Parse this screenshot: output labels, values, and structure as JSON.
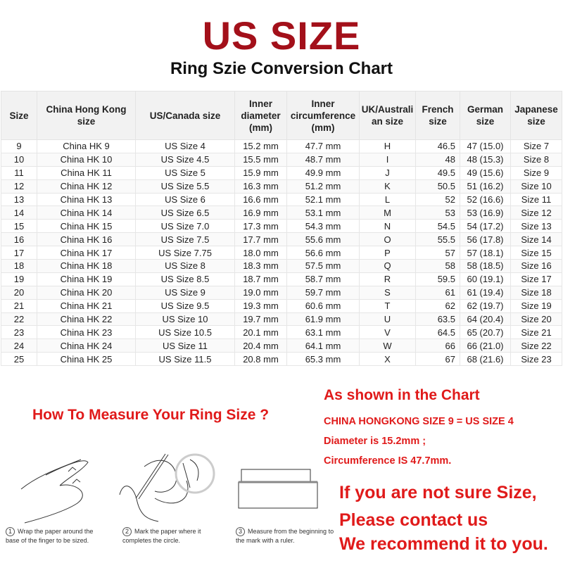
{
  "title": "US SIZE",
  "subtitle": "Ring Szie Conversion Chart",
  "table": {
    "headers": [
      "Size",
      "China Hong Kong size",
      "US/Canada size",
      "Inner diameter (mm)",
      "Inner circumference (mm)",
      "UK/Australi an size",
      "French size",
      "German size",
      "Japanese size"
    ],
    "rows": [
      [
        "9",
        "China HK 9",
        "US Size 4",
        "15.2 mm",
        "47.7 mm",
        "H",
        "46.5",
        "47 (15.0)",
        "Size 7"
      ],
      [
        "10",
        "China HK 10",
        "US Size 4.5",
        "15.5 mm",
        "48.7 mm",
        "I",
        "48",
        "48 (15.3)",
        "Size 8"
      ],
      [
        "11",
        "China HK 11",
        "US Size 5",
        "15.9 mm",
        "49.9 mm",
        "J",
        "49.5",
        "49 (15.6)",
        "Size 9"
      ],
      [
        "12",
        "China HK 12",
        "US Size 5.5",
        "16.3 mm",
        "51.2 mm",
        "K",
        "50.5",
        "51 (16.2)",
        "Size 10"
      ],
      [
        "13",
        "China HK 13",
        "US Size 6",
        "16.6 mm",
        "52.1 mm",
        "L",
        "52",
        "52 (16.6)",
        "Size 11"
      ],
      [
        "14",
        "China HK 14",
        "US Size 6.5",
        "16.9 mm",
        "53.1 mm",
        "M",
        "53",
        "53 (16.9)",
        "Size 12"
      ],
      [
        "15",
        "China HK 15",
        "US Size 7.0",
        "17.3 mm",
        "54.3 mm",
        "N",
        "54.5",
        "54 (17.2)",
        "Size 13"
      ],
      [
        "16",
        "China HK 16",
        "US Size 7.5",
        "17.7 mm",
        "55.6 mm",
        "O",
        "55.5",
        "56 (17.8)",
        "Size 14"
      ],
      [
        "17",
        "China HK 17",
        "US Size 7.75",
        "18.0 mm",
        "56.6 mm",
        "P",
        "57",
        "57 (18.1)",
        "Size 15"
      ],
      [
        "18",
        "China HK 18",
        "US Size 8",
        "18.3 mm",
        "57.5 mm",
        "Q",
        "58",
        "58 (18.5)",
        "Size 16"
      ],
      [
        "19",
        "China HK 19",
        "US Size 8.5",
        "18.7 mm",
        "58.7 mm",
        "R",
        "59.5",
        "60 (19.1)",
        "Size 17"
      ],
      [
        "20",
        "China HK 20",
        "US Size 9",
        "19.0 mm",
        "59.7 mm",
        "S",
        "61",
        "61 (19.4)",
        "Size 18"
      ],
      [
        "21",
        "China HK 21",
        "US Size 9.5",
        "19.3 mm",
        "60.6 mm",
        "T",
        "62",
        "62 (19.7)",
        "Size 19"
      ],
      [
        "22",
        "China HK 22",
        "US Size 10",
        "19.7 mm",
        "61.9 mm",
        "U",
        "63.5",
        "64 (20.4)",
        "Size 20"
      ],
      [
        "23",
        "China HK 23",
        "US Size 10.5",
        "20.1 mm",
        "63.1 mm",
        "V",
        "64.5",
        "65 (20.7)",
        "Size 21"
      ],
      [
        "24",
        "China HK 24",
        "US Size 11",
        "20.4 mm",
        "64.1 mm",
        "W",
        "66",
        "66 (21.0)",
        "Size 22"
      ],
      [
        "25",
        "China HK 25",
        "US Size 11.5",
        "20.8 mm",
        "65.3 mm",
        "X",
        "67",
        "68 (21.6)",
        "Size 23"
      ]
    ]
  },
  "measure_heading": "How To Measure Your Ring Size ?",
  "example": {
    "heading": "As shown in the Chart",
    "line1": "CHINA HONGKONG SIZE 9 = US SIZE 4",
    "line2": "Diameter is 15.2mm ;",
    "line3": "Circumference IS 47.7mm."
  },
  "contact": {
    "line1": "If you are not sure Size,",
    "line2": "Please contact us",
    "line3": "We recommend it to you."
  },
  "steps": [
    {
      "num": "1",
      "text": "Wrap the paper around the base of the finger to be sized."
    },
    {
      "num": "2",
      "text": "Mark the paper where it completes the circle."
    },
    {
      "num": "3",
      "text": "Measure from the beginning to the mark with a ruler."
    }
  ],
  "colors": {
    "title": "#a3101a",
    "accent": "#e01a1a"
  }
}
